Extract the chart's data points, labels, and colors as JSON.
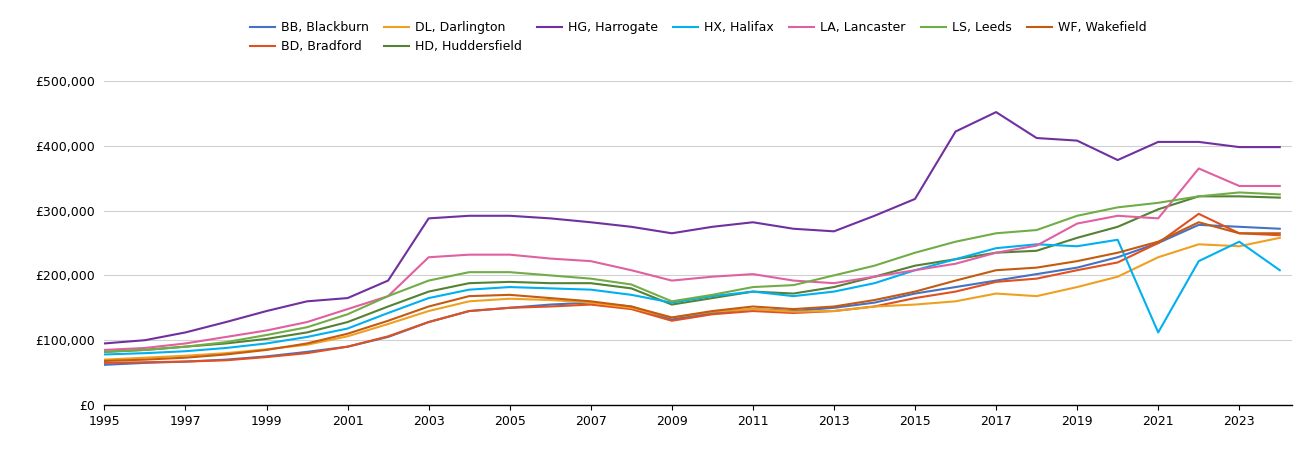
{
  "years": [
    1995,
    1996,
    1997,
    1998,
    1999,
    2000,
    2001,
    2002,
    2003,
    2004,
    2005,
    2006,
    2007,
    2008,
    2009,
    2010,
    2011,
    2012,
    2013,
    2014,
    2015,
    2016,
    2017,
    2018,
    2019,
    2020,
    2021,
    2022,
    2023,
    2024
  ],
  "series": [
    {
      "name": "BB, Blackburn",
      "color": "#4472c4",
      "values": [
        62000,
        65000,
        67000,
        70000,
        75000,
        82000,
        90000,
        105000,
        128000,
        145000,
        150000,
        155000,
        158000,
        152000,
        132000,
        142000,
        148000,
        145000,
        150000,
        158000,
        172000,
        182000,
        192000,
        202000,
        212000,
        228000,
        250000,
        278000,
        275000,
        272000
      ]
    },
    {
      "name": "BD, Bradford",
      "color": "#e05020",
      "values": [
        65000,
        66000,
        67000,
        69000,
        74000,
        80000,
        90000,
        106000,
        128000,
        145000,
        150000,
        152000,
        155000,
        148000,
        130000,
        140000,
        145000,
        142000,
        145000,
        152000,
        165000,
        175000,
        190000,
        195000,
        208000,
        220000,
        250000,
        295000,
        265000,
        262000
      ]
    },
    {
      "name": "DL, Darlington",
      "color": "#f0a020",
      "values": [
        70000,
        73000,
        76000,
        80000,
        86000,
        93000,
        106000,
        125000,
        145000,
        160000,
        164000,
        162000,
        158000,
        150000,
        135000,
        144000,
        148000,
        144000,
        145000,
        152000,
        155000,
        160000,
        172000,
        168000,
        182000,
        198000,
        228000,
        248000,
        245000,
        258000
      ]
    },
    {
      "name": "HD, Huddersfield",
      "color": "#548235",
      "values": [
        82000,
        85000,
        90000,
        95000,
        102000,
        112000,
        128000,
        152000,
        175000,
        188000,
        190000,
        188000,
        188000,
        180000,
        155000,
        165000,
        175000,
        172000,
        182000,
        198000,
        215000,
        225000,
        235000,
        238000,
        258000,
        275000,
        302000,
        322000,
        322000,
        320000
      ]
    },
    {
      "name": "HG, Harrogate",
      "color": "#7030a0",
      "values": [
        95000,
        100000,
        112000,
        128000,
        145000,
        160000,
        165000,
        192000,
        288000,
        292000,
        292000,
        288000,
        282000,
        275000,
        265000,
        275000,
        282000,
        272000,
        268000,
        292000,
        318000,
        422000,
        452000,
        412000,
        408000,
        378000,
        406000,
        406000,
        398000,
        398000
      ]
    },
    {
      "name": "HX, Halifax",
      "color": "#00b0f0",
      "values": [
        78000,
        80000,
        83000,
        88000,
        95000,
        105000,
        118000,
        142000,
        165000,
        178000,
        182000,
        180000,
        178000,
        170000,
        158000,
        168000,
        175000,
        168000,
        175000,
        188000,
        208000,
        225000,
        242000,
        248000,
        245000,
        255000,
        112000,
        222000,
        252000,
        208000
      ]
    },
    {
      "name": "LA, Lancaster",
      "color": "#e060a0",
      "values": [
        85000,
        88000,
        95000,
        105000,
        115000,
        128000,
        148000,
        168000,
        228000,
        232000,
        232000,
        226000,
        222000,
        208000,
        192000,
        198000,
        202000,
        192000,
        188000,
        198000,
        208000,
        218000,
        235000,
        246000,
        280000,
        292000,
        288000,
        365000,
        338000,
        338000
      ]
    },
    {
      "name": "LS, Leeds",
      "color": "#70ad47",
      "values": [
        82000,
        85000,
        90000,
        97000,
        108000,
        120000,
        140000,
        168000,
        192000,
        205000,
        205000,
        200000,
        195000,
        186000,
        160000,
        170000,
        182000,
        185000,
        200000,
        215000,
        235000,
        252000,
        265000,
        270000,
        292000,
        305000,
        312000,
        322000,
        328000,
        325000
      ]
    },
    {
      "name": "WF, Wakefield",
      "color": "#c55a11",
      "values": [
        68000,
        70000,
        73000,
        78000,
        85000,
        95000,
        110000,
        130000,
        152000,
        168000,
        170000,
        165000,
        160000,
        152000,
        135000,
        145000,
        152000,
        148000,
        152000,
        162000,
        175000,
        192000,
        208000,
        212000,
        222000,
        235000,
        252000,
        282000,
        265000,
        265000
      ]
    }
  ],
  "ylim": [
    0,
    500000
  ],
  "yticks": [
    0,
    100000,
    200000,
    300000,
    400000,
    500000
  ],
  "xticks": [
    1995,
    1997,
    1999,
    2001,
    2003,
    2005,
    2007,
    2009,
    2011,
    2013,
    2015,
    2017,
    2019,
    2021,
    2023
  ],
  "background_color": "#ffffff",
  "grid_color": "#d0d0d0"
}
